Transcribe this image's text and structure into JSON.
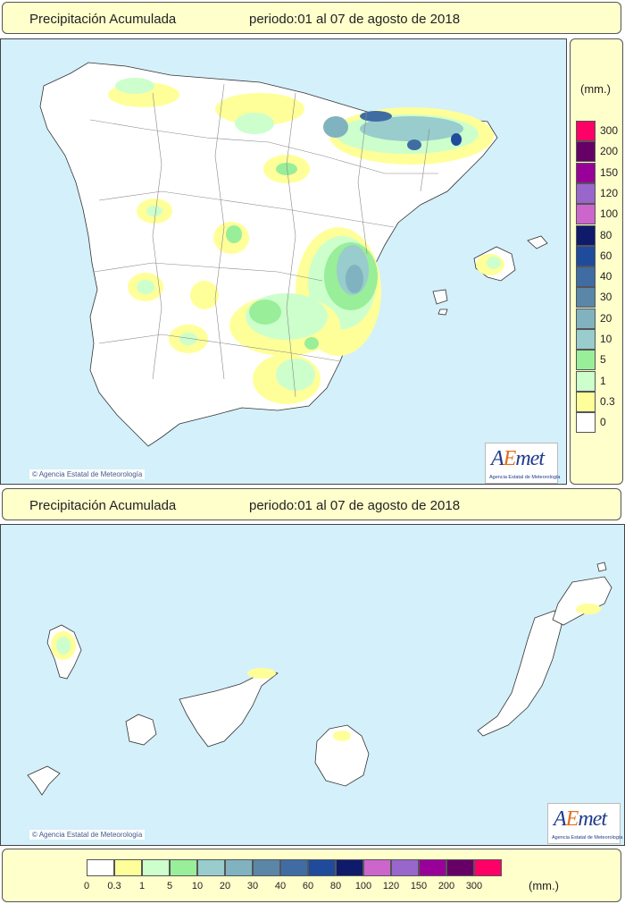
{
  "top_title": {
    "label": "Precipitación Acumulada",
    "period": "periodo:01 al 07 de agosto de 2018"
  },
  "bottom_title": {
    "label": "Precipitación Acumulada",
    "period": "periodo:01 al 07 de agosto de 2018"
  },
  "credit": "Agencia Estatal de Meteorología",
  "logo": {
    "word_a": "A",
    "word_e": "E",
    "word_met": "met",
    "subtitle": "Agencia Estatal de Meteorología"
  },
  "legend": {
    "units": "(mm.)",
    "classes": [
      {
        "label": "0",
        "color": "#ffffff"
      },
      {
        "label": "0.3",
        "color": "#ffff99"
      },
      {
        "label": "1",
        "color": "#ccffcc"
      },
      {
        "label": "5",
        "color": "#99ee99"
      },
      {
        "label": "10",
        "color": "#99cccc"
      },
      {
        "label": "20",
        "color": "#80b3bf"
      },
      {
        "label": "30",
        "color": "#5a86a8"
      },
      {
        "label": "40",
        "color": "#3f6da3"
      },
      {
        "label": "60",
        "color": "#1f4b9c"
      },
      {
        "label": "80",
        "color": "#101a6b"
      },
      {
        "label": "100",
        "color": "#cc66cc"
      },
      {
        "label": "120",
        "color": "#9966cc"
      },
      {
        "label": "150",
        "color": "#990099"
      },
      {
        "label": "200",
        "color": "#660066"
      },
      {
        "label": "300",
        "color": "#ff0066"
      }
    ]
  },
  "colors": {
    "sea": "#d4f0fa",
    "land": "#ffffff",
    "panel": "#ffffcc"
  }
}
